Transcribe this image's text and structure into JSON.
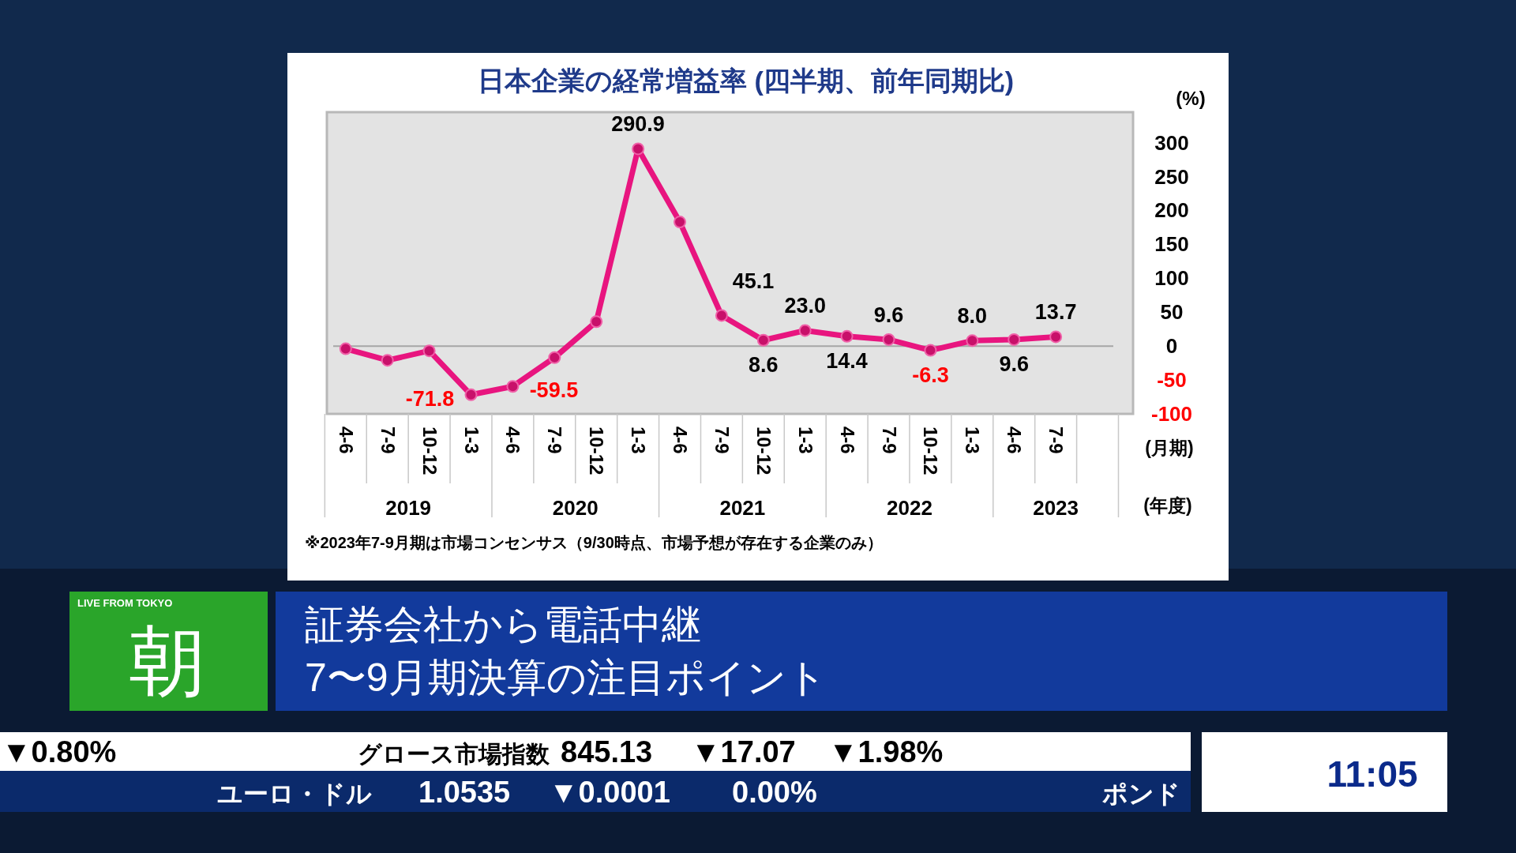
{
  "chart_data": {
    "type": "line",
    "title": "日本企業の経常増益率 (四半期、前年同期比)",
    "ylabel": "(%)",
    "xlabel": "(月期)",
    "categories": [
      "4-6",
      "7-9",
      "10-12",
      "1-3",
      "4-6",
      "7-9",
      "10-12",
      "1-3",
      "4-6",
      "7-9",
      "10-12",
      "1-3",
      "4-6",
      "7-9",
      "10-12",
      "1-3",
      "4-6",
      "7-9"
    ],
    "series": [
      {
        "color": "#e8157f",
        "values": [
          -4,
          -21,
          -7,
          -71.8,
          -59.5,
          -17,
          36,
          290.9,
          183,
          45.1,
          8.6,
          23.0,
          14.4,
          9.6,
          -6.3,
          8.0,
          9.6,
          13.7
        ],
        "value_labels": [
          null,
          null,
          null,
          "-71.8",
          "-59.5",
          null,
          null,
          "290.9",
          null,
          "45.1",
          "8.6",
          "23.0",
          "14.4",
          "9.6",
          "-6.3",
          "8.0",
          "9.6",
          "13.7"
        ]
      }
    ],
    "ylim": [
      -100,
      345
    ],
    "yticks": [
      -100,
      -50,
      0,
      50,
      100,
      150,
      200,
      250,
      300
    ],
    "marker": "circle",
    "line_style": "solid",
    "grid": false,
    "ref_lines": [
      {
        "axis": "y",
        "value": 0,
        "color": "#a6a6a6"
      }
    ],
    "annotations": [
      "※2023年7-9月期は市場コンセンサス（9/30時点、市場予想が存在する企業のみ）",
      "2019",
      "2020",
      "2021",
      "2022",
      "2023",
      "(年度)",
      "LIVE FROM TOKYO",
      "朝",
      "証券会社から電話中継",
      "7〜9月期決算の注目ポイント",
      "▼0.80%",
      "グロース市場指数",
      "845.13",
      "▼17.07",
      "▼1.98%",
      "ユーロ・ドル",
      "1.0535",
      "▼0.0001",
      "0.00%",
      "ポンド",
      "11:05"
    ]
  }
}
